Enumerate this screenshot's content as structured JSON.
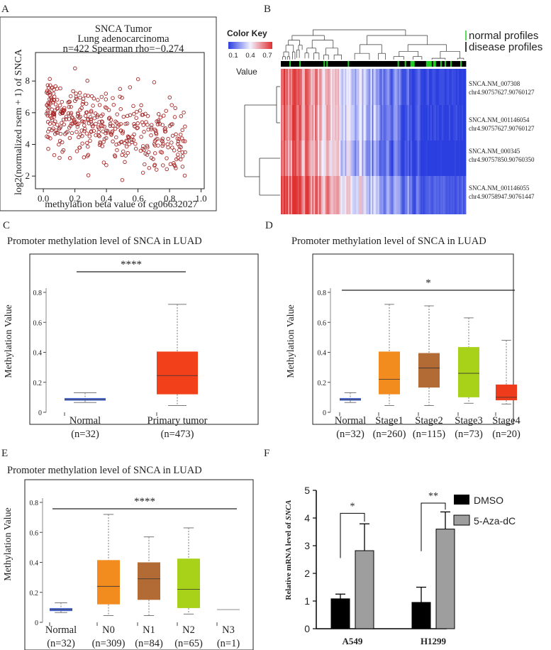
{
  "colors": {
    "scatter_point": "#a52a2a",
    "normal_box": "#4e6bd8",
    "tumor_box": "#f2401b",
    "stage1": "#f28c1f",
    "stage2": "#b36b35",
    "stage3": "#a8d21a",
    "stage4": "#ee3b1b",
    "n0": "#f28c1f",
    "n1": "#b36b35",
    "n2": "#a8d21a",
    "dmso": "#000000",
    "aza": "#9e9e9e",
    "heat_high": "#e03030",
    "heat_mid": "#f2f2ff",
    "heat_low": "#2b3fe0",
    "normal_profile_bar": "#22cc22"
  },
  "chart_data": [
    {
      "panel": "A",
      "type": "scatter",
      "title_line1": "SNCA   Tumor",
      "title_line2": "Lung adenocarcinoma",
      "stats": "n=422    Spearman rho=−0.274",
      "xlabel": "methylation beta value of cg06632027",
      "ylabel": "log2(normalized rsem + 1) of SNCA",
      "xlim": [
        -0.05,
        1.02
      ],
      "ylim": [
        1.2,
        9.8
      ],
      "xticks": [
        "0.0",
        "0.2",
        "0.4",
        "0.6",
        "0.8",
        "1.0"
      ],
      "yticks": [
        "2",
        "4",
        "6",
        "8"
      ],
      "n": 422,
      "seed": 7
    },
    {
      "panel": "B",
      "type": "heatmap",
      "color_key_title": "Color Key",
      "color_key_ticks": [
        "0.1",
        "0.4",
        "0.7"
      ],
      "color_key_range": [
        0.1,
        0.7
      ],
      "color_key_label": "Value",
      "legend_normal": "normal profiles",
      "legend_disease": "disease profiles",
      "rows": [
        {
          "name": "SNCA.NM_007308",
          "coord": "chr4.90757627.90760127"
        },
        {
          "name": "SNCA.NM_001146054",
          "coord": "chr4.90757627.90760127"
        },
        {
          "name": "SNCA.NM_000345",
          "coord": "chr4.90757850.90760350"
        },
        {
          "name": "SNCA.NM_001146055",
          "coord": "chr4.90758947.90761447"
        }
      ]
    },
    {
      "panel": "C",
      "type": "box",
      "title": "Promoter methylation level of SNCA in LUAD",
      "ylabel": "Methylation Value",
      "ylim": [
        0,
        0.8
      ],
      "yticks": [
        "0",
        "0.2",
        "0.4",
        "0.6",
        "0.8"
      ],
      "significance": "****",
      "groups": [
        {
          "name": "Normal",
          "n": "(n=32)",
          "min": 0.065,
          "q1": 0.078,
          "median": 0.085,
          "q3": 0.095,
          "max": 0.13,
          "color": "normal_box"
        },
        {
          "name": "Primary tumor",
          "n": "(n=473)",
          "min": 0.045,
          "q1": 0.12,
          "median": 0.245,
          "q3": 0.405,
          "max": 0.72,
          "color": "tumor_box"
        }
      ]
    },
    {
      "panel": "D",
      "type": "box",
      "title": "Promoter methylation level of SNCA in LUAD",
      "ylabel": "Methylation Value",
      "ylim": [
        0,
        0.8
      ],
      "yticks": [
        "0",
        "0.2",
        "0.4",
        "0.6",
        "0.8"
      ],
      "significance": "*",
      "groups": [
        {
          "name": "Normal",
          "n": "(n=32)",
          "min": 0.065,
          "q1": 0.078,
          "median": 0.085,
          "q3": 0.095,
          "max": 0.13,
          "color": "normal_box"
        },
        {
          "name": "Stage1",
          "n": "(n=260)",
          "min": 0.045,
          "q1": 0.12,
          "median": 0.22,
          "q3": 0.405,
          "max": 0.72,
          "color": "stage1"
        },
        {
          "name": "Stage2",
          "n": "(n=115)",
          "min": 0.045,
          "q1": 0.165,
          "median": 0.295,
          "q3": 0.395,
          "max": 0.71,
          "color": "stage2"
        },
        {
          "name": "Stage3",
          "n": "(n=73)",
          "min": 0.06,
          "q1": 0.1,
          "median": 0.26,
          "q3": 0.435,
          "max": 0.63,
          "color": "stage3"
        },
        {
          "name": "Stage4",
          "n": "(n=20)",
          "min": 0.055,
          "q1": 0.08,
          "median": 0.1,
          "q3": 0.185,
          "max": 0.48,
          "color": "stage4"
        }
      ]
    },
    {
      "panel": "E",
      "type": "box",
      "title": "Promoter methylation level of SNCA in LUAD",
      "ylabel": "Methylation Value",
      "ylim": [
        0,
        0.8
      ],
      "yticks": [
        "0",
        "0.2",
        "0.4",
        "0.6",
        "0.8"
      ],
      "significance": "****",
      "groups": [
        {
          "name": "Normal",
          "n": "(n=32)",
          "min": 0.065,
          "q1": 0.075,
          "median": 0.085,
          "q3": 0.095,
          "max": 0.13,
          "color": "normal_box"
        },
        {
          "name": "N0",
          "n": "(n=309)",
          "min": 0.045,
          "q1": 0.12,
          "median": 0.24,
          "q3": 0.415,
          "max": 0.72,
          "color": "n0"
        },
        {
          "name": "N1",
          "n": "(n=84)",
          "min": 0.045,
          "q1": 0.15,
          "median": 0.29,
          "q3": 0.4,
          "max": 0.57,
          "color": "n1"
        },
        {
          "name": "N2",
          "n": "(n=65)",
          "min": 0.055,
          "q1": 0.095,
          "median": 0.22,
          "q3": 0.425,
          "max": 0.63,
          "color": "n2"
        },
        {
          "name": "N3",
          "n": "(n=1)",
          "min": 0.085,
          "q1": 0.085,
          "median": 0.085,
          "q3": 0.085,
          "max": 0.085,
          "color": "n2"
        }
      ]
    },
    {
      "panel": "F",
      "type": "bar",
      "ylabel_prefix": "Relative mRNA level of ",
      "ylabel_gene": "SNCA",
      "ylim": [
        0,
        5
      ],
      "yticks": [
        "0",
        "1",
        "2",
        "3",
        "4",
        "5"
      ],
      "categories": [
        "A549",
        "H1299"
      ],
      "series": [
        {
          "name": "DMSO",
          "values": [
            1.08,
            0.95
          ],
          "errors": [
            0.17,
            0.55
          ],
          "color": "dmso"
        },
        {
          "name": "5-Aza-dC",
          "values": [
            2.82,
            3.6
          ],
          "errors": [
            0.97,
            0.62
          ],
          "color": "aza"
        }
      ],
      "significance": [
        "*",
        "**"
      ]
    }
  ]
}
